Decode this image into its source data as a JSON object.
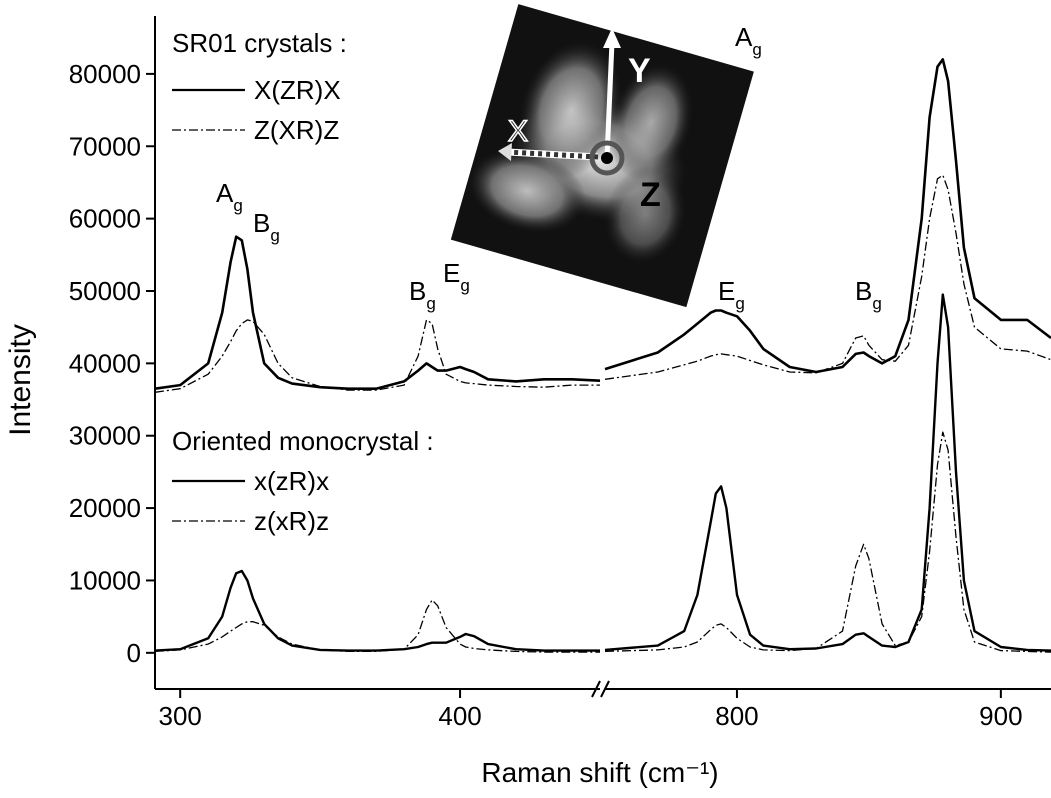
{
  "chart_data": {
    "type": "line",
    "xlabel": "Raman shift (cm⁻¹)",
    "ylabel": "Intensity",
    "ylim": [
      -5000,
      88000
    ],
    "yticks": [
      0,
      10000,
      20000,
      30000,
      40000,
      50000,
      60000,
      70000,
      80000
    ],
    "x_segments": [
      {
        "xlim": [
          291,
          450
        ],
        "xticks": [
          300,
          400
        ]
      },
      {
        "xlim": [
          750,
          919
        ],
        "xticks": [
          800,
          900
        ]
      }
    ],
    "x": [
      291,
      300,
      310,
      315,
      318,
      320,
      322,
      324,
      326,
      330,
      335,
      340,
      350,
      360,
      370,
      380,
      385,
      388,
      390,
      392,
      395,
      400,
      402,
      405,
      410,
      420,
      430,
      440,
      450,
      null,
      750,
      770,
      780,
      785,
      790,
      792,
      794,
      796,
      800,
      805,
      810,
      820,
      830,
      840,
      845,
      848,
      850,
      855,
      860,
      865,
      870,
      873,
      876,
      878,
      880,
      883,
      886,
      890,
      900,
      910,
      919
    ],
    "legend_titles": [
      "SR01 crystals :",
      "Oriented monocrystal :"
    ],
    "series": [
      {
        "name": "X(ZR)X",
        "color": "#000000",
        "dash": "solid",
        "width": 2.6,
        "values": [
          36500,
          37000,
          40000,
          47000,
          54000,
          57500,
          57000,
          53000,
          47000,
          40000,
          38000,
          37200,
          36700,
          36500,
          36500,
          37500,
          39000,
          40000,
          39500,
          39000,
          39000,
          39500,
          39200,
          38800,
          37800,
          37500,
          37800,
          37800,
          37600,
          null,
          39200,
          41500,
          44000,
          45500,
          47000,
          47300,
          47300,
          47000,
          46500,
          44500,
          42000,
          39500,
          38800,
          39500,
          41300,
          41500,
          41000,
          40000,
          41000,
          46000,
          60000,
          74000,
          81000,
          82000,
          79000,
          68000,
          56000,
          49000,
          46000,
          46000,
          43500
        ]
      },
      {
        "name": "Z(XR)Z",
        "color": "#000000",
        "dash": "dashdot",
        "width": 1.3,
        "values": [
          36000,
          36500,
          38500,
          41000,
          43000,
          44500,
          45500,
          46000,
          45800,
          44000,
          40000,
          38000,
          36800,
          36300,
          36300,
          37000,
          41000,
          46000,
          45500,
          42000,
          38500,
          37500,
          37300,
          37200,
          37000,
          36800,
          36700,
          37000,
          37000,
          null,
          37800,
          38800,
          39800,
          40300,
          41000,
          41200,
          41300,
          41200,
          41000,
          40400,
          39800,
          38800,
          38700,
          40000,
          43500,
          43800,
          42500,
          40500,
          40300,
          42500,
          52000,
          60000,
          65500,
          66000,
          64000,
          58000,
          51000,
          45000,
          42000,
          41700,
          40500
        ]
      },
      {
        "name": "x(zR)x",
        "color": "#000000",
        "dash": "solid",
        "width": 2.4,
        "values": [
          300,
          500,
          2000,
          5000,
          9000,
          11000,
          11300,
          10000,
          7500,
          4000,
          2000,
          1000,
          400,
          300,
          300,
          500,
          800,
          1200,
          1400,
          1400,
          1400,
          2200,
          2600,
          2300,
          1200,
          500,
          300,
          300,
          300,
          null,
          400,
          1000,
          3000,
          8000,
          18000,
          22000,
          23000,
          20000,
          8000,
          2500,
          1000,
          500,
          600,
          1200,
          2500,
          2700,
          2200,
          1000,
          800,
          1500,
          6000,
          20000,
          40000,
          49500,
          45000,
          25000,
          10000,
          3000,
          800,
          400,
          300
        ]
      },
      {
        "name": "z(xR)z",
        "color": "#000000",
        "dash": "dashdot",
        "width": 1.3,
        "values": [
          200,
          400,
          1200,
          2200,
          3000,
          3500,
          4000,
          4300,
          4300,
          3800,
          2200,
          1200,
          400,
          200,
          200,
          500,
          2500,
          6000,
          7300,
          6500,
          3500,
          1200,
          800,
          600,
          400,
          200,
          100,
          100,
          100,
          null,
          200,
          400,
          800,
          1500,
          3200,
          3800,
          4000,
          3500,
          2000,
          800,
          400,
          300,
          600,
          3000,
          12000,
          15000,
          13000,
          4000,
          1000,
          1500,
          5000,
          14000,
          26000,
          30500,
          28000,
          16000,
          6000,
          1500,
          300,
          200,
          100
        ]
      }
    ],
    "annotations": [
      {
        "text": "A",
        "subscript": "g"
      },
      {
        "text": "B",
        "subscript": "g"
      },
      {
        "text": "B",
        "subscript": "g"
      },
      {
        "text": "E",
        "subscript": "g"
      },
      {
        "text": "E",
        "subscript": "g"
      },
      {
        "text": "B",
        "subscript": "g"
      },
      {
        "text": "A",
        "subscript": "g"
      }
    ],
    "inset_labels": [
      "Y",
      "X",
      "Z"
    ]
  }
}
